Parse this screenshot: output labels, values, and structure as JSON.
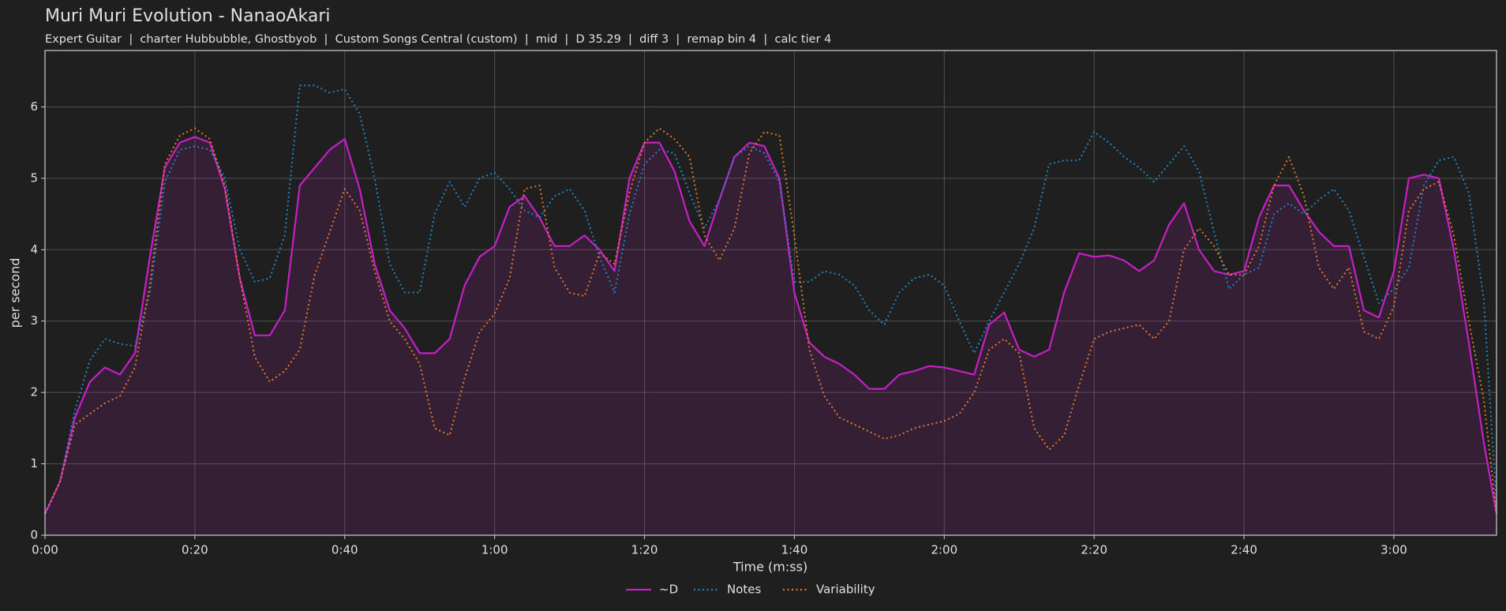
{
  "chart_data": {
    "type": "line",
    "title": "Muri Muri Evolution - NanaoAkari",
    "subtitle": "Expert Guitar  |  charter Hubbubble, Ghostbyob  |  Custom Songs Central (custom)  |  mid  |  D 35.29  |  diff 3  |  remap bin 4  |  calc tier 4",
    "x_label": "Time (m:ss)",
    "y_label": "per second",
    "xlim": [
      0,
      193.7
    ],
    "ylim": [
      0,
      6.79
    ],
    "xticks": [
      {
        "value": 0,
        "label": "0:00"
      },
      {
        "value": 20,
        "label": "0:20"
      },
      {
        "value": 40,
        "label": "0:40"
      },
      {
        "value": 60,
        "label": "1:00"
      },
      {
        "value": 80,
        "label": "1:20"
      },
      {
        "value": 100,
        "label": "1:40"
      },
      {
        "value": 120,
        "label": "2:00"
      },
      {
        "value": 140,
        "label": "2:20"
      },
      {
        "value": 160,
        "label": "2:40"
      },
      {
        "value": 180,
        "label": "3:00"
      }
    ],
    "yticks": [
      0,
      1,
      2,
      3,
      4,
      5,
      6
    ],
    "grid": true,
    "legend": "bottom",
    "x": [
      0,
      2,
      4,
      6,
      8,
      10,
      12,
      14,
      16,
      18,
      20,
      22,
      24,
      26,
      28,
      30,
      32,
      34,
      36,
      38,
      40,
      42,
      44,
      46,
      48,
      50,
      52,
      54,
      56,
      58,
      60,
      62,
      64,
      66,
      68,
      70,
      72,
      74,
      76,
      78,
      80,
      82,
      84,
      86,
      88,
      90,
      92,
      94,
      96,
      98,
      100,
      102,
      104,
      106,
      108,
      110,
      112,
      114,
      116,
      118,
      120,
      122,
      124,
      126,
      128,
      130,
      132,
      134,
      136,
      138,
      140,
      142,
      144,
      146,
      148,
      150,
      152,
      154,
      156,
      158,
      160,
      162,
      164,
      166,
      168,
      170,
      172,
      174,
      176,
      178,
      180,
      182,
      184,
      186,
      188,
      190,
      192,
      193.7
    ],
    "series": [
      {
        "name": "~D",
        "color": "#c61fc6",
        "line_style": "solid",
        "fill": true,
        "values": [
          0.3,
          0.75,
          1.65,
          2.15,
          2.35,
          2.25,
          2.55,
          3.9,
          5.15,
          5.5,
          5.58,
          5.5,
          4.85,
          3.6,
          2.8,
          2.8,
          3.15,
          4.9,
          5.15,
          5.4,
          5.55,
          4.85,
          3.8,
          3.15,
          2.9,
          2.55,
          2.55,
          2.75,
          3.5,
          3.9,
          4.05,
          4.6,
          4.75,
          4.45,
          4.05,
          4.05,
          4.2,
          4.0,
          3.7,
          5.0,
          5.5,
          5.5,
          5.1,
          4.4,
          4.05,
          4.7,
          5.3,
          5.5,
          5.45,
          5.0,
          3.4,
          2.7,
          2.5,
          2.4,
          2.25,
          2.05,
          2.05,
          2.25,
          2.3,
          2.37,
          2.35,
          2.3,
          2.25,
          2.95,
          3.12,
          2.6,
          2.5,
          2.6,
          3.4,
          3.95,
          3.9,
          3.92,
          3.85,
          3.7,
          3.85,
          4.35,
          4.65,
          4.0,
          3.7,
          3.65,
          3.7,
          4.45,
          4.9,
          4.9,
          4.55,
          4.25,
          4.05,
          4.05,
          3.15,
          3.05,
          3.7,
          5.0,
          5.05,
          5.0,
          4.0,
          2.7,
          1.3,
          0.3
        ]
      },
      {
        "name": "Notes",
        "color": "#1f86c4",
        "line_style": "dotted",
        "fill": false,
        "values": [
          0.3,
          0.75,
          1.75,
          2.45,
          2.75,
          2.68,
          2.65,
          3.4,
          4.95,
          5.4,
          5.45,
          5.4,
          5.0,
          4.0,
          3.55,
          3.6,
          4.2,
          6.3,
          6.3,
          6.2,
          6.25,
          5.9,
          5.0,
          3.8,
          3.4,
          3.4,
          4.5,
          4.95,
          4.6,
          5.0,
          5.08,
          4.85,
          4.55,
          4.45,
          4.75,
          4.85,
          4.55,
          3.9,
          3.4,
          4.5,
          5.2,
          5.4,
          5.35,
          4.8,
          4.3,
          4.7,
          5.3,
          5.45,
          5.35,
          4.95,
          3.55,
          3.55,
          3.7,
          3.65,
          3.5,
          3.15,
          2.95,
          3.4,
          3.6,
          3.65,
          3.5,
          3.0,
          2.55,
          3.0,
          3.4,
          3.8,
          4.3,
          5.2,
          5.25,
          5.25,
          5.65,
          5.5,
          5.3,
          5.15,
          4.95,
          5.2,
          5.45,
          5.1,
          4.25,
          3.45,
          3.65,
          3.75,
          4.5,
          4.65,
          4.5,
          4.7,
          4.85,
          4.55,
          3.9,
          3.25,
          3.45,
          3.75,
          4.9,
          5.25,
          5.3,
          4.8,
          3.3,
          0.4
        ]
      },
      {
        "name": "Variability",
        "color": "#e2782a",
        "line_style": "dotted",
        "fill": false,
        "values": [
          0.3,
          0.75,
          1.55,
          1.7,
          1.85,
          1.95,
          2.35,
          3.5,
          5.2,
          5.6,
          5.7,
          5.55,
          4.9,
          3.6,
          2.5,
          2.15,
          2.3,
          2.6,
          3.65,
          4.25,
          4.85,
          4.55,
          3.7,
          3.0,
          2.75,
          2.4,
          1.5,
          1.4,
          2.2,
          2.85,
          3.1,
          3.6,
          4.85,
          4.9,
          3.75,
          3.4,
          3.35,
          3.95,
          3.8,
          4.8,
          5.5,
          5.7,
          5.55,
          5.3,
          4.2,
          3.85,
          4.3,
          5.35,
          5.65,
          5.6,
          4.2,
          2.6,
          1.95,
          1.65,
          1.55,
          1.45,
          1.35,
          1.4,
          1.5,
          1.55,
          1.6,
          1.7,
          2.0,
          2.6,
          2.75,
          2.55,
          1.5,
          1.2,
          1.4,
          2.1,
          2.75,
          2.85,
          2.9,
          2.95,
          2.75,
          3.0,
          4.0,
          4.3,
          4.05,
          3.65,
          3.65,
          4.05,
          4.9,
          5.3,
          4.75,
          3.75,
          3.45,
          3.75,
          2.85,
          2.75,
          3.2,
          4.55,
          4.85,
          4.95,
          4.2,
          3.0,
          1.9,
          0.3
        ]
      }
    ]
  }
}
